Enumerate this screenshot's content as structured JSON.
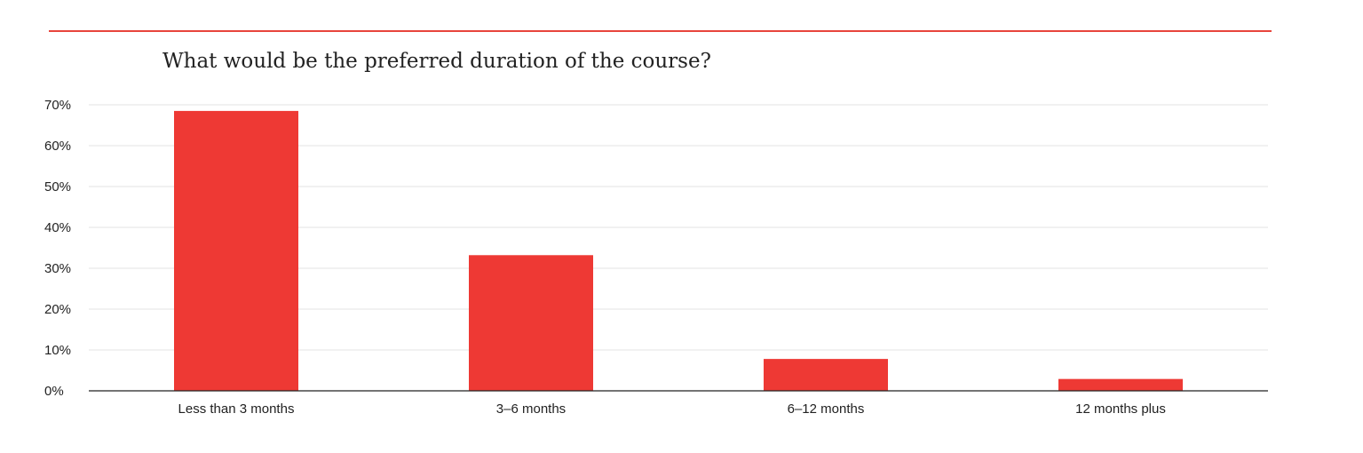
{
  "chart_data": {
    "type": "bar",
    "title": "What would be the preferred duration of the course?",
    "categories": [
      "Less than 3 months",
      "3–6 months",
      "6–12 months",
      "12 months plus"
    ],
    "values": [
      68.5,
      33.2,
      7.8,
      2.9
    ],
    "ylim": [
      0,
      70
    ],
    "yticks": [
      0,
      10,
      20,
      30,
      40,
      50,
      60,
      70
    ],
    "ytick_labels": [
      "0%",
      "10%",
      "20%",
      "30%",
      "40%",
      "50%",
      "60%",
      "70%"
    ],
    "xlabel": "",
    "ylabel": "",
    "grid": true,
    "legend": false,
    "colors": {
      "bar": "#ee3934",
      "accent_rule": "#e8453c",
      "grid": "#e3e3e3",
      "axis": "#222222"
    }
  }
}
